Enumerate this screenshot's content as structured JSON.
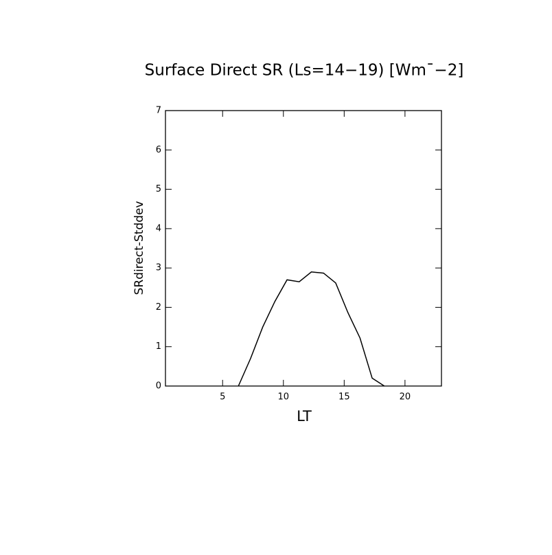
{
  "chart_data": {
    "type": "line",
    "title": "Surface Direct SR (Ls=14−19) [Wm¯−2]",
    "x_label": "LT",
    "y_label": "SRdirect-Stddev",
    "x": [
      6.3,
      7.3,
      8.3,
      9.3,
      10.3,
      11.3,
      12.3,
      13.3,
      14.3,
      15.3,
      16.3,
      17.3,
      18.3
    ],
    "series": [
      {
        "color": "#000000",
        "values": [
          0,
          0.7,
          1.5,
          2.15,
          2.7,
          2.65,
          2.9,
          2.87,
          2.62,
          1.87,
          1.22,
          0.2,
          0
        ]
      }
    ],
    "xlim": [
      0.3,
      23.0
    ],
    "xticks": [
      5,
      10,
      15,
      20
    ],
    "ylim": [
      0,
      7
    ],
    "yticks": [
      0,
      1,
      2,
      3,
      4,
      5,
      6,
      7
    ]
  }
}
